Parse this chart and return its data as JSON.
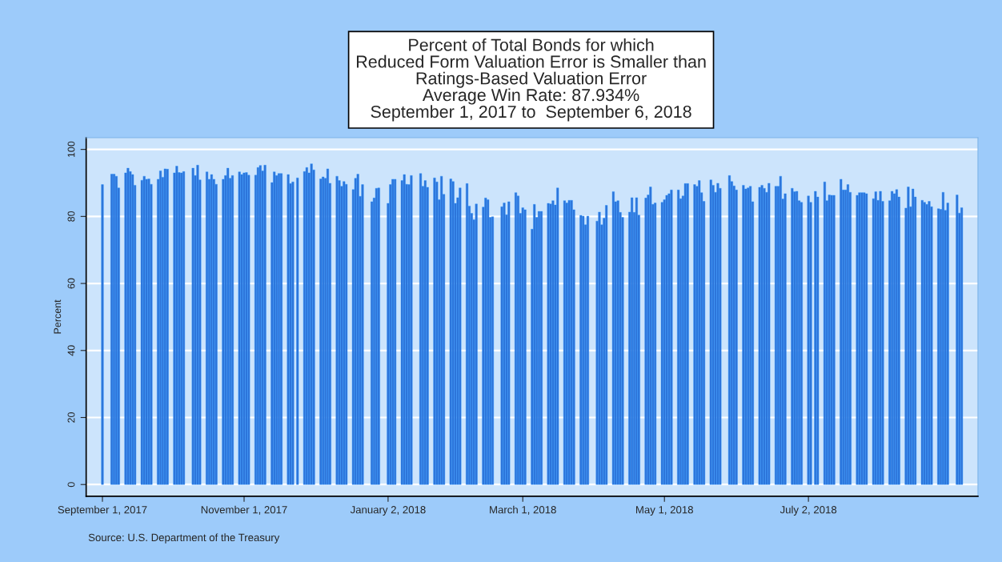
{
  "chart_data": {
    "type": "bar",
    "title": "Percent of Total Bonds for which\nReduced Form Valuation Error is Smaller than\nRatings-Based Valuation Error\nAverage Win Rate: 87.934%\nSeptember 1, 2017 to  September 6, 2018",
    "ylabel": "Percent",
    "annotations": [
      "Source: U.S. Department of the Treasury"
    ],
    "color": "#2f74d8",
    "grid": "y",
    "xlim": [
      "2017-08-25",
      "2018-09-13"
    ],
    "xticks": [
      {
        "value": "2017-09-01",
        "label": "September 1, 2017"
      },
      {
        "value": "2017-11-01",
        "label": "November 1, 2017"
      },
      {
        "value": "2018-01-02",
        "label": "January 2, 2018"
      },
      {
        "value": "2018-03-01",
        "label": "March 1, 2018"
      },
      {
        "value": "2018-05-01",
        "label": "May 1, 2018"
      },
      {
        "value": "2018-07-02",
        "label": "July 2, 2018"
      }
    ],
    "ylim": [
      -3.5,
      103.5
    ],
    "yticks": [
      0,
      20,
      40,
      60,
      80,
      100
    ],
    "x": [
      "2017-09-01",
      "2017-09-05",
      "2017-09-06",
      "2017-09-07",
      "2017-09-08",
      "2017-09-11",
      "2017-09-12",
      "2017-09-13",
      "2017-09-14",
      "2017-09-15",
      "2017-09-18",
      "2017-09-19",
      "2017-09-20",
      "2017-09-21",
      "2017-09-22",
      "2017-09-25",
      "2017-09-26",
      "2017-09-27",
      "2017-09-28",
      "2017-09-29",
      "2017-10-02",
      "2017-10-03",
      "2017-10-04",
      "2017-10-05",
      "2017-10-06",
      "2017-10-10",
      "2017-10-11",
      "2017-10-12",
      "2017-10-13",
      "2017-10-16",
      "2017-10-17",
      "2017-10-18",
      "2017-10-19",
      "2017-10-20",
      "2017-10-23",
      "2017-10-24",
      "2017-10-25",
      "2017-10-26",
      "2017-10-27",
      "2017-10-30",
      "2017-10-31",
      "2017-11-01",
      "2017-11-02",
      "2017-11-03",
      "2017-11-06",
      "2017-11-07",
      "2017-11-08",
      "2017-11-09",
      "2017-11-10",
      "2017-11-13",
      "2017-11-14",
      "2017-11-15",
      "2017-11-16",
      "2017-11-17",
      "2017-11-20",
      "2017-11-21",
      "2017-11-22",
      "2017-11-24",
      "2017-11-27",
      "2017-11-28",
      "2017-11-29",
      "2017-11-30",
      "2017-12-01",
      "2017-12-04",
      "2017-12-05",
      "2017-12-06",
      "2017-12-07",
      "2017-12-08",
      "2017-12-11",
      "2017-12-12",
      "2017-12-13",
      "2017-12-14",
      "2017-12-15",
      "2017-12-18",
      "2017-12-19",
      "2017-12-20",
      "2017-12-21",
      "2017-12-22",
      "2017-12-26",
      "2017-12-27",
      "2017-12-28",
      "2017-12-29",
      "2018-01-02",
      "2018-01-03",
      "2018-01-04",
      "2018-01-05",
      "2018-01-08",
      "2018-01-09",
      "2018-01-10",
      "2018-01-11",
      "2018-01-12",
      "2018-01-16",
      "2018-01-17",
      "2018-01-18",
      "2018-01-19",
      "2018-01-22",
      "2018-01-23",
      "2018-01-24",
      "2018-01-25",
      "2018-01-26",
      "2018-01-29",
      "2018-01-30",
      "2018-01-31",
      "2018-02-01",
      "2018-02-02",
      "2018-02-05",
      "2018-02-06",
      "2018-02-07",
      "2018-02-08",
      "2018-02-09",
      "2018-02-12",
      "2018-02-13",
      "2018-02-14",
      "2018-02-15",
      "2018-02-16",
      "2018-02-20",
      "2018-02-21",
      "2018-02-22",
      "2018-02-23",
      "2018-02-26",
      "2018-02-27",
      "2018-02-28",
      "2018-03-01",
      "2018-03-02",
      "2018-03-05",
      "2018-03-06",
      "2018-03-07",
      "2018-03-08",
      "2018-03-09",
      "2018-03-12",
      "2018-03-13",
      "2018-03-14",
      "2018-03-15",
      "2018-03-16",
      "2018-03-19",
      "2018-03-20",
      "2018-03-21",
      "2018-03-22",
      "2018-03-23",
      "2018-03-26",
      "2018-03-27",
      "2018-03-28",
      "2018-03-29",
      "2018-04-02",
      "2018-04-03",
      "2018-04-04",
      "2018-04-05",
      "2018-04-06",
      "2018-04-09",
      "2018-04-10",
      "2018-04-11",
      "2018-04-12",
      "2018-04-13",
      "2018-04-16",
      "2018-04-17",
      "2018-04-18",
      "2018-04-19",
      "2018-04-20",
      "2018-04-23",
      "2018-04-24",
      "2018-04-25",
      "2018-04-26",
      "2018-04-27",
      "2018-04-30",
      "2018-05-01",
      "2018-05-02",
      "2018-05-03",
      "2018-05-04",
      "2018-05-07",
      "2018-05-08",
      "2018-05-09",
      "2018-05-10",
      "2018-05-11",
      "2018-05-14",
      "2018-05-15",
      "2018-05-16",
      "2018-05-17",
      "2018-05-18",
      "2018-05-21",
      "2018-05-22",
      "2018-05-23",
      "2018-05-24",
      "2018-05-25",
      "2018-05-29",
      "2018-05-30",
      "2018-05-31",
      "2018-06-01",
      "2018-06-04",
      "2018-06-05",
      "2018-06-06",
      "2018-06-07",
      "2018-06-08",
      "2018-06-11",
      "2018-06-12",
      "2018-06-13",
      "2018-06-14",
      "2018-06-15",
      "2018-06-18",
      "2018-06-19",
      "2018-06-20",
      "2018-06-21",
      "2018-06-22",
      "2018-06-25",
      "2018-06-26",
      "2018-06-27",
      "2018-06-28",
      "2018-06-29",
      "2018-07-02",
      "2018-07-03",
      "2018-07-05",
      "2018-07-06",
      "2018-07-09",
      "2018-07-10",
      "2018-07-11",
      "2018-07-12",
      "2018-07-13",
      "2018-07-16",
      "2018-07-17",
      "2018-07-18",
      "2018-07-19",
      "2018-07-20",
      "2018-07-23",
      "2018-07-24",
      "2018-07-25",
      "2018-07-26",
      "2018-07-27",
      "2018-07-30",
      "2018-07-31",
      "2018-08-01",
      "2018-08-02",
      "2018-08-03",
      "2018-08-06",
      "2018-08-07",
      "2018-08-08",
      "2018-08-09",
      "2018-08-10",
      "2018-08-13",
      "2018-08-14",
      "2018-08-15",
      "2018-08-16",
      "2018-08-17",
      "2018-08-20",
      "2018-08-21",
      "2018-08-22",
      "2018-08-23",
      "2018-08-24",
      "2018-08-27",
      "2018-08-28",
      "2018-08-29",
      "2018-08-30",
      "2018-08-31",
      "2018-09-04",
      "2018-09-05",
      "2018-09-06"
    ],
    "values": [
      89.5,
      92.6,
      92.6,
      92.0,
      88.5,
      93.0,
      94.4,
      93.4,
      92.5,
      89.3,
      90.8,
      92.0,
      91.1,
      91.2,
      89.6,
      91.1,
      93.6,
      91.7,
      94.2,
      94.1,
      93.0,
      95.0,
      93.1,
      93.0,
      93.4,
      94.4,
      92.2,
      95.3,
      90.9,
      93.3,
      91.1,
      92.5,
      91.1,
      89.6,
      91.1,
      92.2,
      94.4,
      91.4,
      92.2,
      93.3,
      92.5,
      93.0,
      93.1,
      92.3,
      92.3,
      94.6,
      95.2,
      93.6,
      95.3,
      90.1,
      93.3,
      92.2,
      92.8,
      92.8,
      92.5,
      89.8,
      90.3,
      91.5,
      93.4,
      94.6,
      93.0,
      95.7,
      93.9,
      91.2,
      91.8,
      91.4,
      94.2,
      89.9,
      92.0,
      90.7,
      89.0,
      90.4,
      89.6,
      88.0,
      91.4,
      92.6,
      86.0,
      89.5,
      84.4,
      85.5,
      88.4,
      88.5,
      83.9,
      89.5,
      91.1,
      91.1,
      90.7,
      92.5,
      89.6,
      89.5,
      92.2,
      92.8,
      89.0,
      90.7,
      88.7,
      91.5,
      90.3,
      85.0,
      92.0,
      86.6,
      91.2,
      90.4,
      83.9,
      85.6,
      88.5,
      89.8,
      83.1,
      80.9,
      79.0,
      83.7,
      82.8,
      85.5,
      85.0,
      79.7,
      79.9,
      82.9,
      84.0,
      80.5,
      84.4,
      87.1,
      86.1,
      80.9,
      82.6,
      82.0,
      76.2,
      83.6,
      79.7,
      81.5,
      81.5,
      83.9,
      83.7,
      84.7,
      83.4,
      88.5,
      84.7,
      84.0,
      84.8,
      84.8,
      82.0,
      80.3,
      80.1,
      77.5,
      80.1,
      78.6,
      81.3,
      77.5,
      79.5,
      83.3,
      87.4,
      84.4,
      84.7,
      81.2,
      79.7,
      81.3,
      85.6,
      81.2,
      85.6,
      80.4,
      85.5,
      86.4,
      88.8,
      83.6,
      84.0,
      84.2,
      85.0,
      86.3,
      86.8,
      87.9,
      87.9,
      85.3,
      86.1,
      89.8,
      89.8,
      89.5,
      89.0,
      90.7,
      87.1,
      84.5,
      90.9,
      89.3,
      87.2,
      89.9,
      88.4,
      92.2,
      90.4,
      89.1,
      87.9,
      89.3,
      88.2,
      88.5,
      89.0,
      84.4,
      88.7,
      89.3,
      88.4,
      87.2,
      89.9,
      89.0,
      89.0,
      92.0,
      85.2,
      86.8,
      88.4,
      87.4,
      87.5,
      84.7,
      84.2,
      86.1,
      84.2,
      87.5,
      85.8,
      90.3,
      84.7,
      86.4,
      86.3,
      86.3,
      91.1,
      87.9,
      87.9,
      89.5,
      87.2,
      86.3,
      87.1,
      87.1,
      87.1,
      86.8,
      85.3,
      87.4,
      84.8,
      87.5,
      84.5,
      84.7,
      87.5,
      86.8,
      88.0,
      85.8,
      82.5,
      88.8,
      82.9,
      88.2,
      85.8,
      84.8,
      84.2,
      83.6,
      84.5,
      82.9,
      82.3,
      82.1,
      87.2,
      81.8,
      84.0,
      86.4,
      81.0,
      82.6
    ]
  }
}
